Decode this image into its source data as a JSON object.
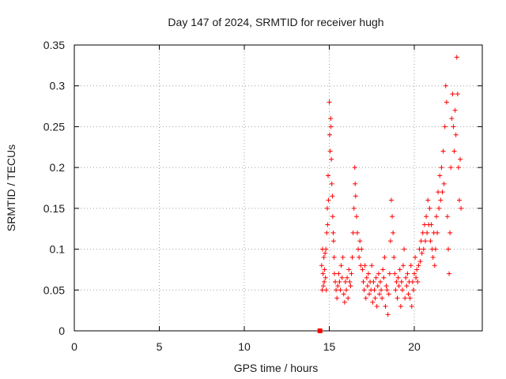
{
  "chart_data": {
    "type": "scatter",
    "title": "Day 147 of 2024, SRMTID for receiver hugh",
    "xlabel": "GPS time / hours",
    "ylabel": "SRMTID / TECUs",
    "xlim": [
      0,
      24
    ],
    "ylim": [
      0,
      0.35
    ],
    "xticks": [
      0,
      5,
      10,
      15,
      20
    ],
    "yticks": [
      0,
      0.05,
      0.1,
      0.15,
      0.2,
      0.25,
      0.3,
      0.35
    ],
    "xtick_labels": [
      "0",
      "5",
      "10",
      "15",
      "20"
    ],
    "ytick_labels": [
      "0",
      "0.05",
      "0.1",
      "0.15",
      "0.2",
      "0.25",
      "0.3",
      "0.35"
    ],
    "grid": true,
    "marker": "plus",
    "color": "#ff0000",
    "anomaly_marker": {
      "x": 14.45,
      "y": 0.0,
      "shape": "square"
    },
    "series": [
      {
        "points": [
          [
            14.55,
            0.08
          ],
          [
            14.58,
            0.05
          ],
          [
            14.6,
            0.1
          ],
          [
            14.63,
            0.07
          ],
          [
            14.65,
            0.055
          ],
          [
            14.68,
            0.09
          ],
          [
            14.7,
            0.06
          ],
          [
            14.72,
            0.075
          ],
          [
            14.75,
            0.095
          ],
          [
            14.78,
            0.065
          ],
          [
            14.8,
            0.1
          ],
          [
            14.82,
            0.05
          ],
          [
            14.85,
            0.12
          ],
          [
            14.88,
            0.15
          ],
          [
            14.9,
            0.13
          ],
          [
            14.93,
            0.19
          ],
          [
            14.95,
            0.16
          ],
          [
            15.0,
            0.28
          ],
          [
            15.02,
            0.24
          ],
          [
            15.05,
            0.22
          ],
          [
            15.08,
            0.26
          ],
          [
            15.1,
            0.25
          ],
          [
            15.12,
            0.21
          ],
          [
            15.15,
            0.18
          ],
          [
            15.18,
            0.165
          ],
          [
            15.2,
            0.14
          ],
          [
            15.23,
            0.12
          ],
          [
            15.25,
            0.11
          ],
          [
            15.28,
            0.09
          ],
          [
            15.3,
            0.07
          ],
          [
            15.35,
            0.06
          ],
          [
            15.4,
            0.05
          ],
          [
            15.45,
            0.04
          ],
          [
            15.5,
            0.055
          ],
          [
            15.55,
            0.07
          ],
          [
            15.6,
            0.06
          ],
          [
            15.65,
            0.05
          ],
          [
            15.7,
            0.08
          ],
          [
            15.75,
            0.065
          ],
          [
            15.8,
            0.09
          ],
          [
            15.85,
            0.045
          ],
          [
            15.9,
            0.035
          ],
          [
            15.95,
            0.06
          ],
          [
            16.0,
            0.05
          ],
          [
            16.05,
            0.065
          ],
          [
            16.1,
            0.04
          ],
          [
            16.15,
            0.075
          ],
          [
            16.2,
            0.06
          ],
          [
            16.25,
            0.055
          ],
          [
            16.3,
            0.07
          ],
          [
            16.35,
            0.09
          ],
          [
            16.4,
            0.12
          ],
          [
            16.45,
            0.15
          ],
          [
            16.5,
            0.2
          ],
          [
            16.52,
            0.18
          ],
          [
            16.55,
            0.165
          ],
          [
            16.6,
            0.14
          ],
          [
            16.65,
            0.12
          ],
          [
            16.7,
            0.1
          ],
          [
            16.75,
            0.09
          ],
          [
            16.8,
            0.11
          ],
          [
            16.85,
            0.08
          ],
          [
            16.9,
            0.1
          ],
          [
            16.95,
            0.075
          ],
          [
            17.0,
            0.06
          ],
          [
            17.05,
            0.05
          ],
          [
            17.1,
            0.08
          ],
          [
            17.15,
            0.04
          ],
          [
            17.2,
            0.065
          ],
          [
            17.25,
            0.055
          ],
          [
            17.3,
            0.07
          ],
          [
            17.35,
            0.045
          ],
          [
            17.4,
            0.06
          ],
          [
            17.45,
            0.05
          ],
          [
            17.5,
            0.08
          ],
          [
            17.55,
            0.035
          ],
          [
            17.6,
            0.06
          ],
          [
            17.65,
            0.05
          ],
          [
            17.7,
            0.04
          ],
          [
            17.75,
            0.065
          ],
          [
            17.8,
            0.03
          ],
          [
            17.85,
            0.055
          ],
          [
            17.9,
            0.07
          ],
          [
            17.95,
            0.045
          ],
          [
            18.0,
            0.06
          ],
          [
            18.05,
            0.05
          ],
          [
            18.1,
            0.04
          ],
          [
            18.15,
            0.075
          ],
          [
            18.2,
            0.065
          ],
          [
            18.25,
            0.09
          ],
          [
            18.3,
            0.03
          ],
          [
            18.35,
            0.055
          ],
          [
            18.4,
            0.05
          ],
          [
            18.45,
            0.02
          ],
          [
            18.5,
            0.045
          ],
          [
            18.55,
            0.07
          ],
          [
            18.6,
            0.11
          ],
          [
            18.65,
            0.16
          ],
          [
            18.7,
            0.14
          ],
          [
            18.75,
            0.12
          ],
          [
            18.8,
            0.09
          ],
          [
            18.85,
            0.07
          ],
          [
            18.9,
            0.05
          ],
          [
            18.95,
            0.06
          ],
          [
            19.0,
            0.04
          ],
          [
            19.05,
            0.065
          ],
          [
            19.1,
            0.055
          ],
          [
            19.15,
            0.075
          ],
          [
            19.2,
            0.03
          ],
          [
            19.25,
            0.06
          ],
          [
            19.3,
            0.05
          ],
          [
            19.35,
            0.08
          ],
          [
            19.4,
            0.1
          ],
          [
            19.45,
            0.04
          ],
          [
            19.5,
            0.065
          ],
          [
            19.55,
            0.055
          ],
          [
            19.6,
            0.07
          ],
          [
            19.65,
            0.045
          ],
          [
            19.7,
            0.06
          ],
          [
            19.75,
            0.04
          ],
          [
            19.8,
            0.08
          ],
          [
            19.85,
            0.03
          ],
          [
            19.9,
            0.06
          ],
          [
            19.95,
            0.05
          ],
          [
            20.0,
            0.07
          ],
          [
            20.05,
            0.09
          ],
          [
            20.1,
            0.065
          ],
          [
            20.15,
            0.075
          ],
          [
            20.2,
            0.06
          ],
          [
            20.25,
            0.08
          ],
          [
            20.3,
            0.1
          ],
          [
            20.35,
            0.085
          ],
          [
            20.4,
            0.11
          ],
          [
            20.45,
            0.095
          ],
          [
            20.5,
            0.12
          ],
          [
            20.55,
            0.1
          ],
          [
            20.6,
            0.13
          ],
          [
            20.65,
            0.11
          ],
          [
            20.7,
            0.14
          ],
          [
            20.75,
            0.12
          ],
          [
            20.8,
            0.16
          ],
          [
            20.85,
            0.13
          ],
          [
            20.9,
            0.15
          ],
          [
            20.95,
            0.11
          ],
          [
            21.0,
            0.13
          ],
          [
            21.05,
            0.1
          ],
          [
            21.1,
            0.09
          ],
          [
            21.15,
            0.12
          ],
          [
            21.2,
            0.08
          ],
          [
            21.25,
            0.1
          ],
          [
            21.3,
            0.14
          ],
          [
            21.35,
            0.12
          ],
          [
            21.4,
            0.17
          ],
          [
            21.45,
            0.15
          ],
          [
            21.5,
            0.19
          ],
          [
            21.55,
            0.16
          ],
          [
            21.6,
            0.2
          ],
          [
            21.65,
            0.17
          ],
          [
            21.7,
            0.22
          ],
          [
            21.75,
            0.18
          ],
          [
            21.8,
            0.25
          ],
          [
            21.85,
            0.3
          ],
          [
            21.9,
            0.28
          ],
          [
            21.95,
            0.14
          ],
          [
            22.0,
            0.1
          ],
          [
            22.05,
            0.07
          ],
          [
            22.1,
            0.12
          ],
          [
            22.15,
            0.2
          ],
          [
            22.2,
            0.26
          ],
          [
            22.25,
            0.29
          ],
          [
            22.3,
            0.25
          ],
          [
            22.35,
            0.22
          ],
          [
            22.4,
            0.27
          ],
          [
            22.45,
            0.24
          ],
          [
            22.5,
            0.335
          ],
          [
            22.55,
            0.29
          ],
          [
            22.6,
            0.2
          ],
          [
            22.65,
            0.16
          ],
          [
            22.7,
            0.21
          ],
          [
            22.75,
            0.15
          ]
        ]
      }
    ]
  }
}
